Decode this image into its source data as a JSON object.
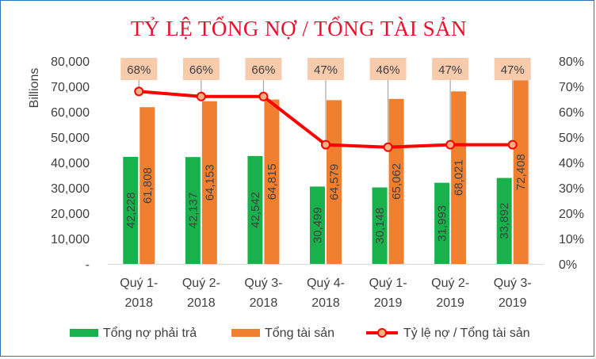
{
  "chart_data": {
    "type": "bar",
    "title": "TỶ LỆ TỔNG NỢ / TỔNG TÀI SẢN",
    "ylabel": "Billions",
    "ylim": [
      0,
      80000
    ],
    "y_ticks": [
      "-",
      "10,000",
      "20,000",
      "30,000",
      "40,000",
      "50,000",
      "60,000",
      "70,000",
      "80,000"
    ],
    "y2lim": [
      0,
      0.8
    ],
    "y2_ticks": [
      "0%",
      "10%",
      "20%",
      "30%",
      "40%",
      "50%",
      "60%",
      "70%",
      "80%"
    ],
    "categories": [
      [
        "Quý 1-",
        "2018"
      ],
      [
        "Quý 2-",
        "2018"
      ],
      [
        "Quý 3-",
        "2018"
      ],
      [
        "Quý 4-",
        "2018"
      ],
      [
        "Quý 1-",
        "2019"
      ],
      [
        "Quý 2-",
        "2019"
      ],
      [
        "Quý 3-",
        "2019"
      ]
    ],
    "series": [
      {
        "name": "Tổng nợ phải trả",
        "type": "bar",
        "color": "#18b14b",
        "values": [
          42228,
          42137,
          42542,
          30499,
          30148,
          31993,
          33892
        ],
        "labels": [
          "42,228",
          "42,137",
          "42,542",
          "30,499",
          "30,148",
          "31,993",
          "33,892"
        ]
      },
      {
        "name": "Tổng tài sản",
        "type": "bar",
        "color": "#f08030",
        "values": [
          61808,
          64153,
          64815,
          64579,
          65062,
          68021,
          72408
        ],
        "labels": [
          "61,808",
          "64,153",
          "64,815",
          "64,579",
          "65,062",
          "68,021",
          "72,408"
        ]
      },
      {
        "name": "Tỷ lệ nợ / Tổng tài sản",
        "type": "line",
        "axis": "secondary",
        "color": "#ff0000",
        "marker_fill": "#f4b183",
        "label_fill": "#f8cbad",
        "values": [
          0.68,
          0.66,
          0.66,
          0.47,
          0.46,
          0.47,
          0.47
        ],
        "labels": [
          "68%",
          "66%",
          "66%",
          "47%",
          "46%",
          "47%",
          "47%"
        ]
      }
    ],
    "legend_position": "bottom",
    "grid": false
  }
}
